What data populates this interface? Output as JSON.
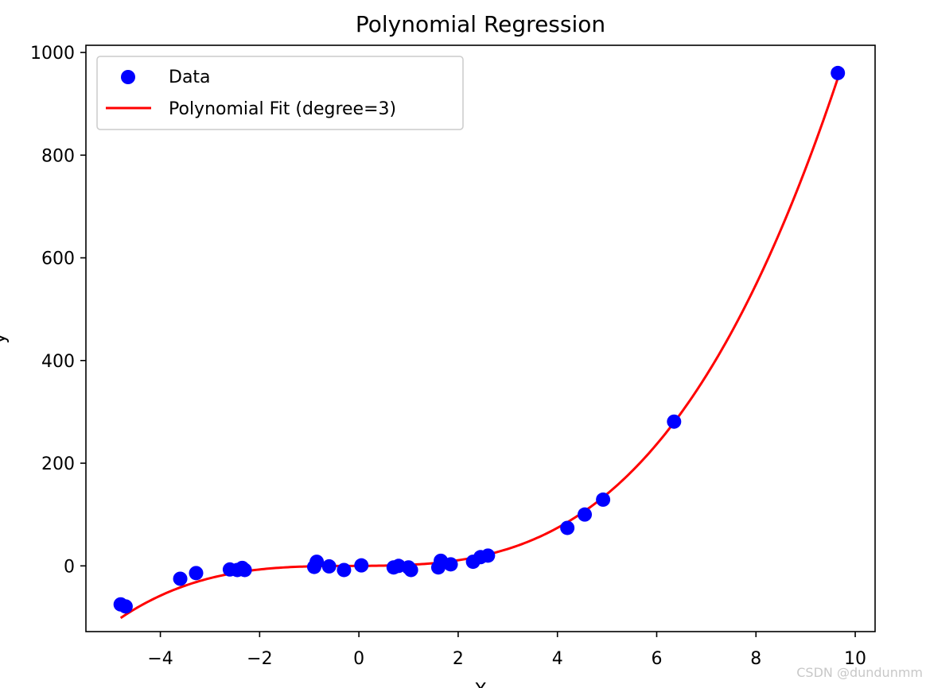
{
  "chart_data": {
    "type": "scatter",
    "title": "Polynomial Regression",
    "xlabel": "X",
    "ylabel": "y",
    "xlim": [
      -5.5,
      10.4
    ],
    "ylim": [
      -128,
      1014
    ],
    "xticks": [
      -4,
      -2,
      0,
      2,
      4,
      6,
      8,
      10
    ],
    "xtick_labels": [
      "−4",
      "−2",
      "0",
      "2",
      "4",
      "6",
      "8",
      "10"
    ],
    "yticks": [
      0,
      200,
      400,
      600,
      800,
      1000
    ],
    "ytick_labels": [
      "0",
      "200",
      "400",
      "600",
      "800",
      "1000"
    ],
    "grid": false,
    "legend_position": "upper-left",
    "series": [
      {
        "name": "Data",
        "kind": "scatter",
        "color": "#0000ff",
        "points": [
          [
            -4.8,
            -75
          ],
          [
            -4.7,
            -79
          ],
          [
            -3.6,
            -25
          ],
          [
            -3.28,
            -14
          ],
          [
            -2.6,
            -7
          ],
          [
            -2.45,
            -8
          ],
          [
            -2.35,
            -4
          ],
          [
            -2.3,
            -8
          ],
          [
            -0.9,
            -2
          ],
          [
            -0.85,
            8
          ],
          [
            -0.6,
            -1
          ],
          [
            -0.3,
            -8
          ],
          [
            0.05,
            1
          ],
          [
            0.7,
            -3
          ],
          [
            0.8,
            0
          ],
          [
            1.0,
            -3
          ],
          [
            1.05,
            -8
          ],
          [
            1.6,
            -3
          ],
          [
            1.65,
            10
          ],
          [
            1.85,
            3
          ],
          [
            2.3,
            8
          ],
          [
            2.45,
            17
          ],
          [
            2.6,
            20
          ],
          [
            4.2,
            74
          ],
          [
            4.55,
            100
          ],
          [
            4.92,
            129
          ],
          [
            6.35,
            281
          ],
          [
            9.65,
            960
          ]
        ]
      },
      {
        "name": "Polynomial Fit (degree=3)",
        "kind": "line",
        "color": "#ff0000",
        "coefficients_desc": [
          1.0,
          0.5,
          0.5,
          0.0
        ],
        "x_range": [
          -4.8,
          9.65
        ]
      }
    ],
    "watermark": "CSDN @dundunmm"
  }
}
